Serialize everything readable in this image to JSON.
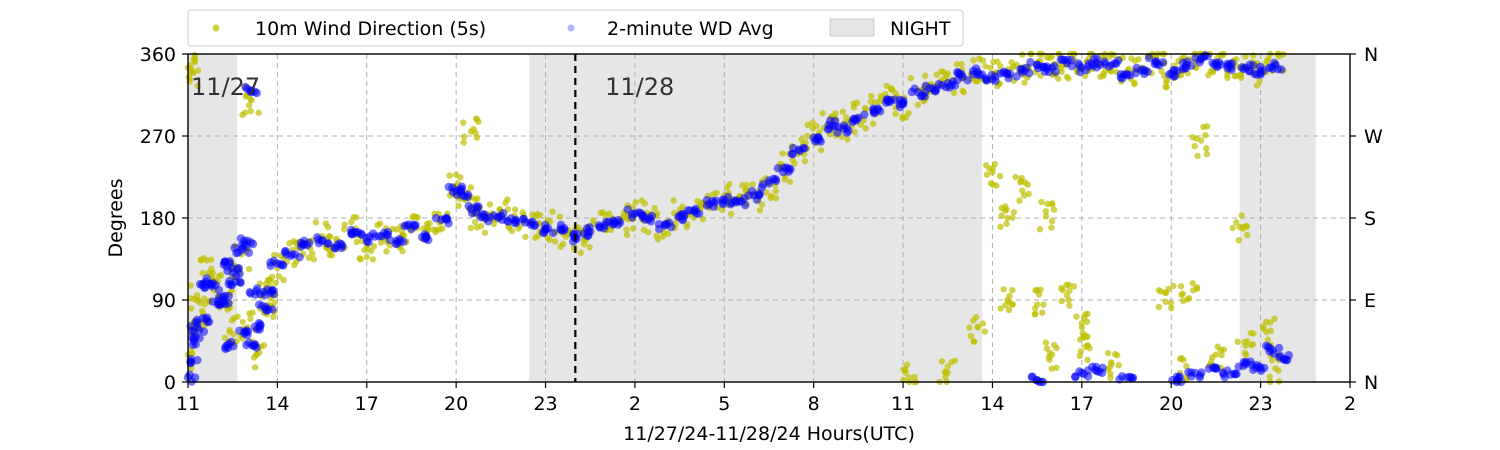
{
  "chart_data": {
    "type": "scatter",
    "xlabel": "11/27/24-11/28/24  Hours(UTC)",
    "ylabel": "Degrees",
    "xlim": [
      11,
      50
    ],
    "ylim": [
      0,
      360
    ],
    "x_ticks": [
      {
        "value": 11,
        "label": "11"
      },
      {
        "value": 14,
        "label": "14"
      },
      {
        "value": 17,
        "label": "17"
      },
      {
        "value": 20,
        "label": "20"
      },
      {
        "value": 23,
        "label": "23"
      },
      {
        "value": 26,
        "label": "2"
      },
      {
        "value": 29,
        "label": "5"
      },
      {
        "value": 32,
        "label": "8"
      },
      {
        "value": 35,
        "label": "11"
      },
      {
        "value": 38,
        "label": "14"
      },
      {
        "value": 41,
        "label": "17"
      },
      {
        "value": 44,
        "label": "20"
      },
      {
        "value": 47,
        "label": "23"
      },
      {
        "value": 50,
        "label": "2"
      }
    ],
    "y_ticks": [
      {
        "value": 0,
        "label": "0"
      },
      {
        "value": 90,
        "label": "90"
      },
      {
        "value": 180,
        "label": "180"
      },
      {
        "value": 270,
        "label": "270"
      },
      {
        "value": 360,
        "label": "360"
      }
    ],
    "y2_ticks": [
      {
        "value": 0,
        "label": "N"
      },
      {
        "value": 90,
        "label": "E"
      },
      {
        "value": 180,
        "label": "S"
      },
      {
        "value": 270,
        "label": "W"
      },
      {
        "value": 360,
        "label": "N"
      }
    ],
    "grid": true,
    "legend_position": "top",
    "legend": [
      "10m Wind Direction (5s)",
      "2-minute WD Avg",
      "NIGHT"
    ],
    "night_shading": [
      [
        11.0,
        12.65
      ],
      [
        22.45,
        37.65
      ],
      [
        46.3,
        48.85
      ]
    ],
    "day_divider": 24.0,
    "day_labels": [
      {
        "x": 11.1,
        "y": 326,
        "text": "11/27"
      },
      {
        "x": 25.0,
        "y": 326,
        "text": "11/28"
      }
    ],
    "colors": {
      "raw": "#bfbf00",
      "avg": "#0000ff",
      "night": "#e6e6e6",
      "grid": "#b0b0b0"
    },
    "series": [
      {
        "name": "10m Wind Direction (5s)",
        "values": [
          [
            11.0,
            30
          ],
          [
            11.0,
            345
          ],
          [
            11.1,
            340
          ],
          [
            11.2,
            60
          ],
          [
            11.3,
            95
          ],
          [
            11.5,
            75
          ],
          [
            11.7,
            120
          ],
          [
            12.0,
            110
          ],
          [
            12.2,
            85
          ],
          [
            12.4,
            55
          ],
          [
            12.6,
            125
          ],
          [
            12.8,
            140
          ],
          [
            13.0,
            60
          ],
          [
            13.1,
            310
          ],
          [
            13.3,
            30
          ],
          [
            13.5,
            95
          ],
          [
            13.7,
            85
          ],
          [
            14.0,
            125
          ],
          [
            14.5,
            145
          ],
          [
            15.0,
            150
          ],
          [
            15.5,
            160
          ],
          [
            16.0,
            155
          ],
          [
            16.5,
            165
          ],
          [
            17.0,
            150
          ],
          [
            17.5,
            160
          ],
          [
            18.0,
            155
          ],
          [
            18.5,
            170
          ],
          [
            19.0,
            165
          ],
          [
            19.5,
            180
          ],
          [
            20.0,
            215
          ],
          [
            20.3,
            200
          ],
          [
            20.6,
            185
          ],
          [
            21.0,
            180
          ],
          [
            21.5,
            185
          ],
          [
            22.0,
            178
          ],
          [
            22.5,
            175
          ],
          [
            23.0,
            170
          ],
          [
            23.5,
            165
          ],
          [
            24.0,
            158
          ],
          [
            24.5,
            165
          ],
          [
            25.0,
            170
          ],
          [
            25.5,
            178
          ],
          [
            26.0,
            185
          ],
          [
            26.5,
            180
          ],
          [
            27.0,
            170
          ],
          [
            27.5,
            185
          ],
          [
            28.0,
            188
          ],
          [
            28.5,
            195
          ],
          [
            29.0,
            205
          ],
          [
            29.5,
            200
          ],
          [
            30.0,
            205
          ],
          [
            30.5,
            218
          ],
          [
            31.0,
            235
          ],
          [
            31.5,
            255
          ],
          [
            32.0,
            270
          ],
          [
            32.5,
            283
          ],
          [
            33.0,
            280
          ],
          [
            33.5,
            290
          ],
          [
            34.0,
            300
          ],
          [
            34.5,
            310
          ],
          [
            35.0,
            305
          ],
          [
            35.5,
            320
          ],
          [
            36.0,
            325
          ],
          [
            36.5,
            330
          ],
          [
            37.0,
            335
          ],
          [
            37.5,
            340
          ],
          [
            38.0,
            335
          ],
          [
            38.5,
            340
          ],
          [
            39.0,
            345
          ],
          [
            39.5,
            350
          ],
          [
            40.0,
            345
          ],
          [
            40.5,
            350
          ],
          [
            41.0,
            345
          ],
          [
            41.5,
            352
          ],
          [
            42.0,
            348
          ],
          [
            42.5,
            340
          ],
          [
            43.0,
            345
          ],
          [
            43.5,
            352
          ],
          [
            44.0,
            340
          ],
          [
            44.5,
            350
          ],
          [
            45.0,
            355
          ],
          [
            45.5,
            350
          ],
          [
            46.0,
            348
          ],
          [
            46.5,
            345
          ],
          [
            47.0,
            342
          ],
          [
            47.5,
            348
          ],
          [
            37.5,
            60
          ],
          [
            38.5,
            90
          ],
          [
            39.5,
            85
          ],
          [
            40.5,
            95
          ],
          [
            41.0,
            60
          ],
          [
            38.5,
            180
          ],
          [
            39.8,
            182
          ],
          [
            46.3,
            170
          ],
          [
            43.8,
            98
          ],
          [
            44.6,
            92
          ],
          [
            20.5,
            275
          ],
          [
            38.0,
            230
          ],
          [
            39.0,
            210
          ],
          [
            45.0,
            265
          ],
          [
            41.2,
            40
          ],
          [
            42.0,
            20
          ],
          [
            46.5,
            40
          ],
          [
            47.2,
            55
          ],
          [
            47.5,
            15
          ],
          [
            35.2,
            5
          ],
          [
            36.5,
            10
          ],
          [
            40.0,
            30
          ],
          [
            44.3,
            10
          ],
          [
            45.5,
            30
          ]
        ]
      },
      {
        "name": "2-minute WD Avg",
        "values": [
          [
            11.0,
            5
          ],
          [
            11.1,
            25
          ],
          [
            11.2,
            45
          ],
          [
            11.3,
            60
          ],
          [
            11.5,
            70
          ],
          [
            11.6,
            110
          ],
          [
            11.8,
            105
          ],
          [
            12.0,
            85
          ],
          [
            12.2,
            90
          ],
          [
            12.3,
            40
          ],
          [
            12.4,
            130
          ],
          [
            12.5,
            120
          ],
          [
            12.6,
            110
          ],
          [
            12.8,
            145
          ],
          [
            12.9,
            55
          ],
          [
            13.0,
            155
          ],
          [
            13.1,
            320
          ],
          [
            13.2,
            40
          ],
          [
            13.3,
            100
          ],
          [
            13.4,
            60
          ],
          [
            13.6,
            80
          ],
          [
            13.8,
            100
          ],
          [
            14.0,
            130
          ],
          [
            14.5,
            140
          ],
          [
            15.0,
            150
          ],
          [
            15.5,
            155
          ],
          [
            16.0,
            150
          ],
          [
            16.5,
            162
          ],
          [
            17.0,
            158
          ],
          [
            17.5,
            160
          ],
          [
            18.0,
            155
          ],
          [
            18.5,
            168
          ],
          [
            19.0,
            160
          ],
          [
            19.5,
            178
          ],
          [
            20.0,
            210
          ],
          [
            20.2,
            205
          ],
          [
            20.5,
            190
          ],
          [
            21.0,
            180
          ],
          [
            21.5,
            182
          ],
          [
            22.0,
            178
          ],
          [
            22.5,
            175
          ],
          [
            23.0,
            168
          ],
          [
            23.5,
            168
          ],
          [
            24.0,
            158
          ],
          [
            24.5,
            165
          ],
          [
            25.0,
            172
          ],
          [
            25.5,
            175
          ],
          [
            26.0,
            185
          ],
          [
            26.5,
            180
          ],
          [
            27.0,
            172
          ],
          [
            27.5,
            182
          ],
          [
            28.0,
            188
          ],
          [
            28.5,
            195
          ],
          [
            29.0,
            200
          ],
          [
            29.5,
            198
          ],
          [
            30.0,
            205
          ],
          [
            30.5,
            218
          ],
          [
            31.0,
            235
          ],
          [
            31.5,
            255
          ],
          [
            32.0,
            268
          ],
          [
            32.5,
            282
          ],
          [
            33.0,
            278
          ],
          [
            33.5,
            290
          ],
          [
            34.0,
            300
          ],
          [
            34.5,
            308
          ],
          [
            35.0,
            305
          ],
          [
            35.5,
            318
          ],
          [
            36.0,
            322
          ],
          [
            36.5,
            328
          ],
          [
            37.0,
            335
          ],
          [
            37.5,
            340
          ],
          [
            38.0,
            332
          ],
          [
            38.5,
            338
          ],
          [
            39.0,
            340
          ],
          [
            39.5,
            348
          ],
          [
            40.0,
            345
          ],
          [
            40.5,
            350
          ],
          [
            41.0,
            345
          ],
          [
            41.5,
            350
          ],
          [
            42.0,
            348
          ],
          [
            42.5,
            338
          ],
          [
            43.0,
            342
          ],
          [
            43.5,
            352
          ],
          [
            44.0,
            338
          ],
          [
            44.5,
            348
          ],
          [
            45.0,
            355
          ],
          [
            45.5,
            350
          ],
          [
            46.0,
            345
          ],
          [
            46.5,
            345
          ],
          [
            47.0,
            342
          ],
          [
            47.5,
            348
          ],
          [
            39.5,
            2
          ],
          [
            41.0,
            10
          ],
          [
            41.5,
            12
          ],
          [
            42.5,
            5
          ],
          [
            44.2,
            2
          ],
          [
            44.8,
            10
          ],
          [
            45.5,
            15
          ],
          [
            46.0,
            8
          ],
          [
            46.5,
            20
          ],
          [
            47.0,
            15
          ],
          [
            47.4,
            35
          ],
          [
            47.8,
            25
          ]
        ]
      }
    ]
  }
}
